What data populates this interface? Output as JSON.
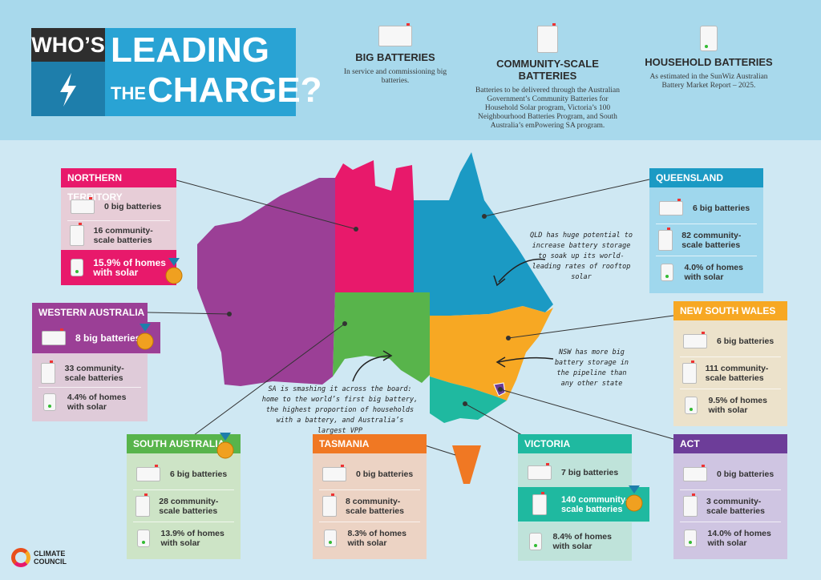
{
  "title": {
    "line1": "WHO’S",
    "line2": "LEADING",
    "line3a": "THE",
    "line3b": "CHARGE?"
  },
  "legend": [
    {
      "icon": "big-battery-icon",
      "heading": "BIG BATTERIES",
      "desc": "In service and commissioning big batteries."
    },
    {
      "icon": "community-battery-icon",
      "heading": "COMMUNITY-SCALE BATTERIES",
      "desc": "Batteries to be delivered through the Australian Government’s Community Batteries for Household Solar program, Victoria’s 100 Neighbourhood Batteries Program, and South Australia’s emPowering SA program."
    },
    {
      "icon": "household-battery-icon",
      "heading": "HOUSEHOLD BATTERIES",
      "desc": "As estimated in the SunWiz Australian Battery Market Report – 2025."
    }
  ],
  "states": {
    "nt": {
      "name": "NORTHERN TERRITORY",
      "big": "0 big batteries",
      "community": "16 community-scale batteries",
      "household": "15.9% of homes with solar",
      "color": "#e8196b"
    },
    "wa": {
      "name": "WESTERN AUSTRALIA",
      "big": "8 big batteries",
      "community": "33 community-scale batteries",
      "household": "4.4% of homes with solar",
      "color": "#9b3f96"
    },
    "sa": {
      "name": "SOUTH AUSTRALIA",
      "big": "6 big batteries",
      "community": "28 community-scale batteries",
      "household": "13.9% of homes with solar",
      "color": "#58b44b"
    },
    "tas": {
      "name": "TASMANIA",
      "big": "0 big batteries",
      "community": "8 community-scale batteries",
      "household": "8.3% of homes with solar",
      "color": "#f07823"
    },
    "vic": {
      "name": "VICTORIA",
      "big": "7 big batteries",
      "community": "140 community-scale batteries",
      "household": "8.4% of homes with solar",
      "color": "#1fb9a0"
    },
    "qld": {
      "name": "QUEENSLAND",
      "big": "6 big batteries",
      "community": "82 community-scale batteries",
      "household": "4.0% of homes with solar",
      "color": "#1b9ac4"
    },
    "nsw": {
      "name": "NEW SOUTH WALES",
      "big": "6 big batteries",
      "community": "111 community-scale batteries",
      "household": "9.5% of homes with solar",
      "color": "#f7a823"
    },
    "act": {
      "name": "ACT",
      "big": "0 big batteries",
      "community": "3 community-scale batteries",
      "household": "14.0% of homes with solar",
      "color": "#6d3d99"
    }
  },
  "notes": {
    "qld": "QLD has huge potential to increase battery storage to soak up its world-leading rates of rooftop solar",
    "nsw": "NSW has more big battery storage in the pipeline than any other state",
    "sa": "SA is smashing it across the board: home to the world’s first big battery, the highest proportion of households with a battery, and Australia’s largest VPP"
  },
  "logo": {
    "line1": "CLIMATE",
    "line2": "COUNCIL"
  }
}
